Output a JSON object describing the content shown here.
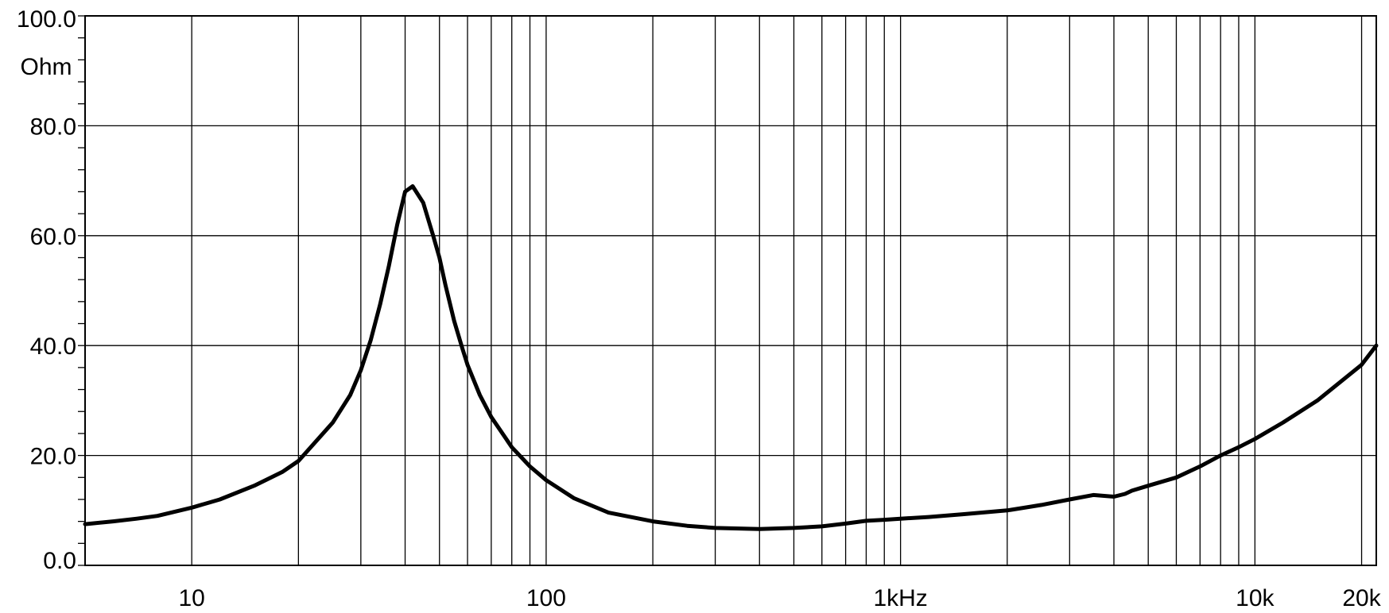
{
  "chart_data": {
    "type": "line",
    "x_scale": "log",
    "xlim": [
      5,
      22000
    ],
    "ylim": [
      0,
      100
    ],
    "grid": true,
    "y_unit": "Ohm",
    "y_ticks": [
      {
        "value": 0,
        "label": "0.0"
      },
      {
        "value": 20,
        "label": "20.0"
      },
      {
        "value": 40,
        "label": "40.0"
      },
      {
        "value": 60,
        "label": "60.0"
      },
      {
        "value": 80,
        "label": "80.0"
      },
      {
        "value": 100,
        "label": "100.0"
      }
    ],
    "x_ticks": [
      {
        "value": 10,
        "label": "10"
      },
      {
        "value": 100,
        "label": "100"
      },
      {
        "value": 1000,
        "label": "1kHz"
      },
      {
        "value": 10000,
        "label": "10k"
      },
      {
        "value": 20000,
        "label": "20k"
      }
    ],
    "x_gridlines": [
      10,
      20,
      30,
      40,
      50,
      60,
      70,
      80,
      90,
      100,
      200,
      300,
      400,
      500,
      600,
      700,
      800,
      900,
      1000,
      2000,
      3000,
      4000,
      5000,
      6000,
      7000,
      8000,
      9000,
      10000,
      20000
    ],
    "series": [
      {
        "color": "#000000",
        "x": [
          5,
          6,
          7,
          8,
          10,
          12,
          15,
          18,
          20,
          25,
          28,
          30,
          32,
          34,
          36,
          38,
          40,
          42,
          45,
          48,
          50,
          52,
          55,
          58,
          60,
          65,
          70,
          80,
          90,
          100,
          120,
          150,
          200,
          250,
          300,
          400,
          500,
          600,
          700,
          800,
          900,
          1000,
          1200,
          1500,
          2000,
          2500,
          3000,
          3500,
          4000,
          4300,
          4500,
          5000,
          6000,
          7000,
          8000,
          9000,
          10000,
          12000,
          15000,
          20000,
          22000
        ],
        "y": [
          7.5,
          8,
          8.5,
          9,
          10.5,
          12,
          14.5,
          17,
          19,
          26,
          31,
          35.5,
          41,
          47.5,
          54.5,
          62,
          68,
          69,
          66,
          60,
          56,
          51,
          44.5,
          39.5,
          36.5,
          31,
          27,
          21.5,
          18,
          15.5,
          12.2,
          9.6,
          8,
          7.2,
          6.8,
          6.6,
          6.8,
          7.1,
          7.6,
          8.1,
          8.3,
          8.5,
          8.8,
          9.3,
          10,
          11,
          12,
          12.8,
          12.5,
          13,
          13.6,
          14.5,
          16,
          18,
          20,
          21.5,
          23,
          26,
          30,
          36.5,
          40
        ]
      }
    ]
  }
}
